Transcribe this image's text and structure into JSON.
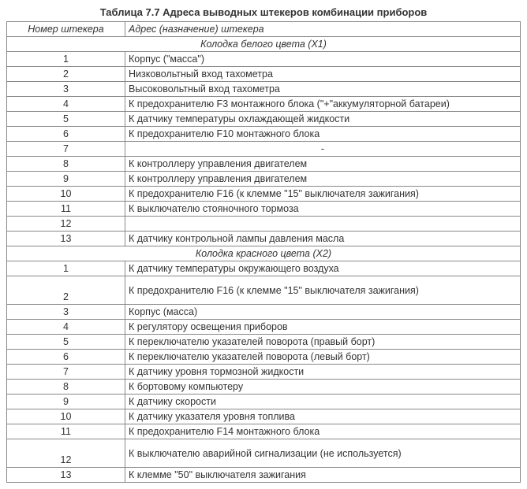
{
  "title": "Таблица 7.7    Адреса выводных штекеров комбинации приборов",
  "headers": {
    "num": "Номер штекера",
    "desc": "Адрес (назначение) штекера"
  },
  "section1": "Колодка белого цвета (Х1)",
  "section2": "Колодка красного цвета (Х2)",
  "rows1": [
    {
      "n": "1",
      "d": "Корпус (\"масса\")"
    },
    {
      "n": "2",
      "d": "Низковольтный вход тахометра"
    },
    {
      "n": "3",
      "d": "Высоковольтный вход тахометра"
    },
    {
      "n": "4",
      "d": "К предохранителю F3 монтажного блока (\"+\"аккумуляторной батареи)"
    },
    {
      "n": "5",
      "d": "К датчику температуры охлаждающей жидкости"
    },
    {
      "n": "6",
      "d": "К предохранителю F10 монтажного блока"
    },
    {
      "n": "7",
      "d": "-"
    },
    {
      "n": "8",
      "d": "К контроллеру управления двигателем"
    },
    {
      "n": "9",
      "d": "К контроллеру управления двигателем"
    },
    {
      "n": "10",
      "d": "К предохранителю F16 (к клемме \"15\" выключателя зажигания)"
    },
    {
      "n": "11",
      "d": "К выключателю стояночного тормоза"
    },
    {
      "n": "12",
      "d": ""
    },
    {
      "n": "13",
      "d": "К датчику контрольной лампы давления масла"
    }
  ],
  "rows2": [
    {
      "n": "1",
      "d": "К датчику температуры окружающего воздуха"
    },
    {
      "n": "2",
      "d": "К предохранителю F16 (к клемме \"15\" выключателя зажигания)",
      "tall": true
    },
    {
      "n": "3",
      "d": "Корпус (масса)"
    },
    {
      "n": "4",
      "d": "К регулятору освещения приборов"
    },
    {
      "n": "5",
      "d": "К переключателю указателей поворота (правый борт)"
    },
    {
      "n": "6",
      "d": "К переключателю указателей поворота (левый борт)"
    },
    {
      "n": "7",
      "d": "К датчику уровня тормозной жидкости"
    },
    {
      "n": "8",
      "d": "К бортовому компьютеру"
    },
    {
      "n": "9",
      "d": "К датчику скорости"
    },
    {
      "n": "10",
      "d": "К датчику указателя уровня топлива"
    },
    {
      "n": "11",
      "d": "К предохранителю F14 монтажного блока"
    },
    {
      "n": "12",
      "d": "К выключателю аварийной сигнализации (не используется)",
      "tall": true
    },
    {
      "n": "13",
      "d": "К клемме \"50\" выключателя зажигания"
    }
  ]
}
